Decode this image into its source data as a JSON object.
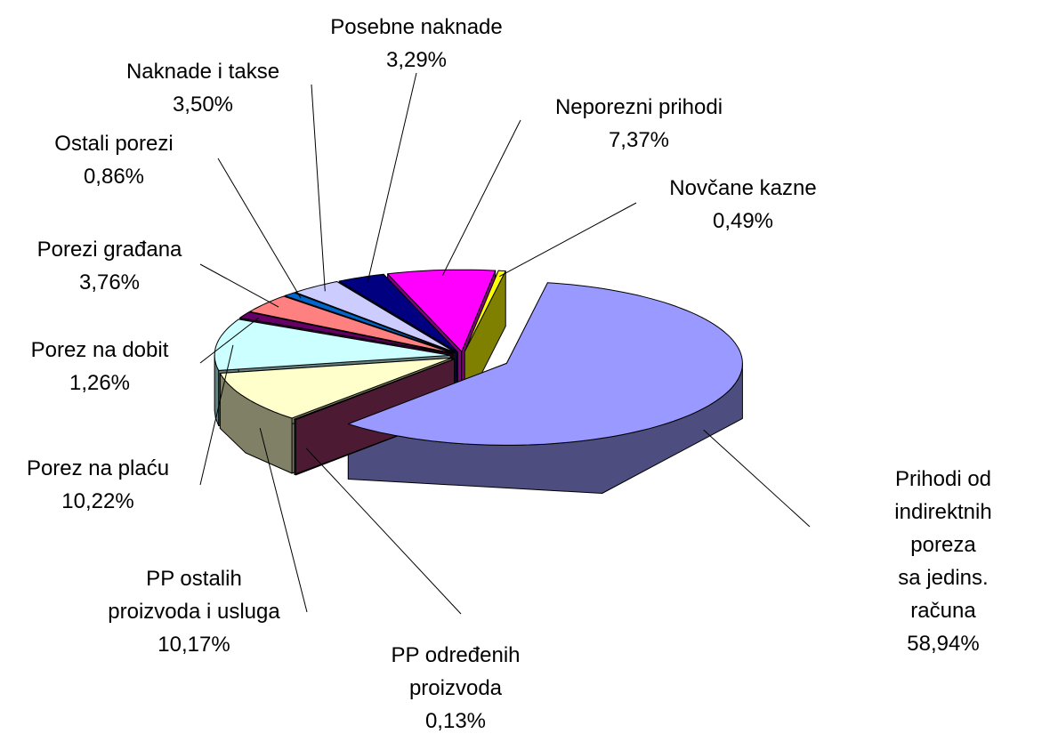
{
  "chart_data": {
    "type": "pie",
    "categories": [
      "Prihodi od\nindirektnih poreza\nsa jedins. računa",
      "PP određenih\nproizvoda",
      "PP ostalih\nproizvoda i usluga",
      "Porez na plaću",
      "Porez na dobit",
      "Porezi građana",
      "Ostali porezi",
      "Naknade i takse",
      "Posebne naknade",
      "Neporezni prihodi",
      "Novčane kazne"
    ],
    "values": [
      58.94,
      0.13,
      10.17,
      10.22,
      1.26,
      3.76,
      0.86,
      3.5,
      3.29,
      7.37,
      0.49
    ],
    "value_labels": [
      "58,94%",
      "0,13%",
      "10,17%",
      "10,22%",
      "1,26%",
      "3,76%",
      "0,86%",
      "3,50%",
      "3,29%",
      "7,37%",
      "0,49%"
    ],
    "colors": [
      "#9999ff",
      "#993366",
      "#ffffcc",
      "#ccffff",
      "#660066",
      "#ff8080",
      "#0066cc",
      "#ccccff",
      "#000080",
      "#ff00ff",
      "#ffff00"
    ],
    "style": "3d-exploded"
  }
}
